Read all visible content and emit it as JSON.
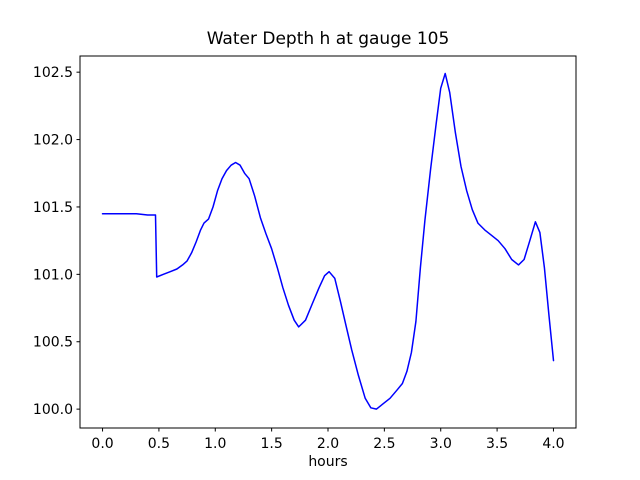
{
  "figure": {
    "title": "Water Depth h at gauge 105",
    "xlabel": "hours"
  },
  "chart_data": {
    "type": "line",
    "title": "Water Depth h at gauge 105",
    "xlabel": "hours",
    "ylabel": "",
    "grid": false,
    "legend": null,
    "background": "#ffffff",
    "axes_color": "#000000",
    "xlim": [
      -0.2,
      4.2
    ],
    "ylim": [
      99.86,
      102.62
    ],
    "xticks": [
      0.0,
      0.5,
      1.0,
      1.5,
      2.0,
      2.5,
      3.0,
      3.5,
      4.0
    ],
    "yticks": [
      100.0,
      100.5,
      101.0,
      101.5,
      102.0,
      102.5
    ],
    "xtick_labels": [
      "0.0",
      "0.5",
      "1.0",
      "1.5",
      "2.0",
      "2.5",
      "3.0",
      "3.5",
      "4.0"
    ],
    "ytick_labels": [
      "100.0",
      "100.5",
      "101.0",
      "101.5",
      "102.0",
      "102.5"
    ],
    "series": [
      {
        "name": "water depth h",
        "color": "#0000ff",
        "line_width": 1.5,
        "x": [
          0.0,
          0.1,
          0.2,
          0.3,
          0.4,
          0.47,
          0.48,
          0.54,
          0.6,
          0.66,
          0.71,
          0.75,
          0.79,
          0.83,
          0.87,
          0.9,
          0.94,
          0.98,
          1.02,
          1.06,
          1.1,
          1.14,
          1.18,
          1.22,
          1.26,
          1.3,
          1.35,
          1.4,
          1.45,
          1.5,
          1.55,
          1.6,
          1.65,
          1.7,
          1.74,
          1.8,
          1.86,
          1.92,
          1.97,
          2.01,
          2.06,
          2.11,
          2.16,
          2.21,
          2.27,
          2.33,
          2.38,
          2.43,
          2.49,
          2.55,
          2.61,
          2.66,
          2.7,
          2.74,
          2.78,
          2.82,
          2.86,
          2.91,
          2.96,
          3.0,
          3.04,
          3.08,
          3.13,
          3.18,
          3.23,
          3.28,
          3.33,
          3.39,
          3.45,
          3.51,
          3.57,
          3.63,
          3.69,
          3.74,
          3.79,
          3.84,
          3.88,
          3.92,
          3.96,
          4.0
        ],
        "y": [
          101.45,
          101.45,
          101.45,
          101.45,
          101.44,
          101.44,
          100.98,
          101.0,
          101.02,
          101.04,
          101.07,
          101.1,
          101.16,
          101.24,
          101.33,
          101.38,
          101.41,
          101.5,
          101.62,
          101.71,
          101.77,
          101.81,
          101.83,
          101.81,
          101.75,
          101.71,
          101.58,
          101.42,
          101.3,
          101.19,
          101.05,
          100.9,
          100.77,
          100.66,
          100.61,
          100.66,
          100.78,
          100.9,
          100.99,
          101.02,
          100.97,
          100.8,
          100.62,
          100.44,
          100.25,
          100.08,
          100.01,
          100.0,
          100.04,
          100.08,
          100.14,
          100.19,
          100.28,
          100.42,
          100.65,
          101.05,
          101.4,
          101.78,
          102.12,
          102.38,
          102.49,
          102.35,
          102.05,
          101.8,
          101.62,
          101.48,
          101.38,
          101.33,
          101.29,
          101.25,
          101.19,
          101.11,
          101.07,
          101.11,
          101.25,
          101.39,
          101.31,
          101.05,
          100.7,
          100.36
        ]
      }
    ]
  }
}
